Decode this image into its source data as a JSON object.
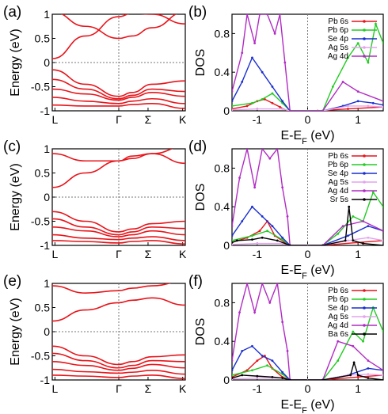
{
  "figure": {
    "band_axis_label": "Energy (eV)",
    "dos_axis_label": "DOS",
    "dos_xlabel_main": "E-E",
    "dos_xlabel_sub": "F",
    "dos_xlabel_unit": " (eV)"
  },
  "chart_data": [
    {
      "type": "line",
      "panel": "(a)",
      "ylabel": "Energy (eV)",
      "ylim": [
        -1,
        1
      ],
      "yticks": [
        "1",
        "0.5",
        "0",
        "-0.5",
        "-1"
      ],
      "xticks": [
        "L",
        "Γ",
        "Σ",
        "K"
      ],
      "x": [
        0,
        0.25,
        0.5,
        0.6,
        0.75,
        1.0
      ],
      "color": "#e8141a",
      "series": [
        {
          "values": [
            0.08,
            0.55,
            0.95,
            1.02,
            1.0,
            0.8
          ]
        },
        {
          "values": [
            1.05,
            0.75,
            0.5,
            0.55,
            0.72,
            1.05
          ]
        },
        {
          "values": [
            -0.15,
            -0.45,
            -0.7,
            -0.62,
            -0.45,
            -0.38
          ]
        },
        {
          "values": [
            -0.35,
            -0.55,
            -0.75,
            -0.68,
            -0.55,
            -0.6
          ]
        },
        {
          "values": [
            -0.55,
            -0.65,
            -0.78,
            -0.72,
            -0.62,
            -0.7
          ]
        },
        {
          "values": [
            -0.72,
            -0.8,
            -0.85,
            -0.8,
            -0.75,
            -0.85
          ]
        },
        {
          "values": [
            -0.88,
            -0.9,
            -0.9,
            -0.87,
            -0.85,
            -0.95
          ]
        }
      ]
    },
    {
      "type": "line",
      "panel": "(b)",
      "ylabel": "DOS",
      "xlim": [
        -1.5,
        1.5
      ],
      "ylim": [
        0,
        1
      ],
      "xticks": [
        "-1",
        "0",
        "1"
      ],
      "yticks": [
        "0",
        "0.4",
        "0.8"
      ],
      "legend": "top-right",
      "series": [
        {
          "name": "Pb 6s",
          "color": "#e8141a",
          "x": [
            -1.5,
            -1.2,
            -1.0,
            -0.85,
            -0.7,
            -0.55,
            -0.4,
            0.2,
            0.8,
            1.5
          ],
          "values": [
            0.02,
            0.05,
            0.1,
            0.12,
            0.08,
            0.04,
            0.0,
            0.0,
            0.02,
            0.04
          ]
        },
        {
          "name": "Pb 6p",
          "color": "#22cc22",
          "x": [
            -1.5,
            -1.1,
            -0.9,
            -0.7,
            -0.5,
            -0.35,
            0.3,
            0.5,
            0.8,
            1.0,
            1.2,
            1.35,
            1.5
          ],
          "values": [
            0.05,
            0.08,
            0.12,
            0.18,
            0.08,
            0.0,
            0.0,
            0.25,
            0.55,
            0.7,
            0.5,
            0.9,
            0.7
          ]
        },
        {
          "name": "Se 4p",
          "color": "#1a2fd0",
          "x": [
            -1.5,
            -1.3,
            -1.1,
            -0.9,
            -0.7,
            -0.5,
            -0.35,
            0.3,
            0.7,
            1.0,
            1.3,
            1.5
          ],
          "values": [
            0.1,
            0.3,
            0.55,
            0.4,
            0.25,
            0.1,
            0.0,
            0.0,
            0.05,
            0.1,
            0.08,
            0.06
          ]
        },
        {
          "name": "Ag 5s",
          "color": "#e4a3ee",
          "x": [
            -1.5,
            -1.0,
            -0.5,
            -0.35,
            0.3,
            0.8,
            1.2,
            1.5
          ],
          "values": [
            0.01,
            0.02,
            0.02,
            0.0,
            0.0,
            0.05,
            0.05,
            0.04
          ]
        },
        {
          "name": "Ag 4d",
          "color": "#b12bc4",
          "x": [
            -1.5,
            -1.3,
            -1.2,
            -1.05,
            -0.95,
            -0.8,
            -0.65,
            -0.55,
            -0.45,
            -0.35,
            0.3,
            0.7,
            1.0,
            1.5
          ],
          "values": [
            0.2,
            0.6,
            1.0,
            0.7,
            1.0,
            1.0,
            0.8,
            1.0,
            0.5,
            0.0,
            0.0,
            0.3,
            0.2,
            0.1
          ]
        },
        {
          "name": "Fermi",
          "color": "#000000",
          "x": [
            0,
            0
          ],
          "values": [
            0,
            1
          ],
          "dashed": true
        }
      ]
    },
    {
      "type": "line",
      "panel": "(c)",
      "ylabel": "Energy (eV)",
      "ylim": [
        -1,
        1
      ],
      "yticks": [
        "1",
        "0.5",
        "0",
        "-0.5",
        "-1"
      ],
      "xticks": [
        "L",
        "Γ",
        "Σ",
        "K"
      ],
      "x": [
        0,
        0.25,
        0.5,
        0.6,
        0.75,
        1.0
      ],
      "color": "#e8141a",
      "series": [
        {
          "values": [
            0.2,
            0.5,
            0.75,
            0.85,
            0.9,
            0.7
          ]
        },
        {
          "values": [
            0.9,
            0.75,
            0.75,
            0.8,
            0.9,
            1.05
          ]
        },
        {
          "values": [
            -0.3,
            -0.5,
            -0.72,
            -0.66,
            -0.55,
            -0.5
          ]
        },
        {
          "values": [
            -0.45,
            -0.62,
            -0.78,
            -0.72,
            -0.62,
            -0.65
          ]
        },
        {
          "values": [
            -0.62,
            -0.7,
            -0.82,
            -0.78,
            -0.7,
            -0.78
          ]
        },
        {
          "values": [
            -0.78,
            -0.85,
            -0.88,
            -0.85,
            -0.82,
            -0.9
          ]
        },
        {
          "values": [
            -0.9,
            -0.92,
            -0.95,
            -0.92,
            -0.9,
            -0.97
          ]
        }
      ]
    },
    {
      "type": "line",
      "panel": "(d)",
      "ylabel": "DOS",
      "xlim": [
        -1.5,
        1.5
      ],
      "ylim": [
        0,
        1
      ],
      "xticks": [
        "-1",
        "0",
        "1"
      ],
      "yticks": [
        "0",
        "0.4",
        "0.8"
      ],
      "legend": "top-right",
      "series": [
        {
          "name": "Pb 6s",
          "color": "#e8141a",
          "x": [
            -1.5,
            -1.2,
            -0.95,
            -0.8,
            -0.65,
            -0.45,
            -0.35,
            0.3,
            1.0,
            1.5
          ],
          "values": [
            0.03,
            0.08,
            0.15,
            0.25,
            0.1,
            0.03,
            0.0,
            0.0,
            0.03,
            0.05
          ]
        },
        {
          "name": "Pb 6p",
          "color": "#22cc22",
          "x": [
            -1.5,
            -1.1,
            -0.8,
            -0.5,
            -0.35,
            0.3,
            0.6,
            0.9,
            1.1,
            1.3,
            1.5
          ],
          "values": [
            0.05,
            0.1,
            0.15,
            0.06,
            0.0,
            0.0,
            0.12,
            0.3,
            0.25,
            0.55,
            0.4
          ]
        },
        {
          "name": "Se 4p",
          "color": "#1a2fd0",
          "x": [
            -1.5,
            -1.3,
            -1.1,
            -0.9,
            -0.7,
            -0.5,
            -0.35,
            0.3,
            0.8,
            1.2,
            1.5
          ],
          "values": [
            0.1,
            0.25,
            0.4,
            0.3,
            0.2,
            0.08,
            0.0,
            0.0,
            0.1,
            0.2,
            0.15
          ]
        },
        {
          "name": "Ag 5s",
          "color": "#e4a3ee",
          "x": [
            -1.5,
            -1.0,
            -0.5,
            -0.35,
            0.3,
            0.8,
            1.2,
            1.5
          ],
          "values": [
            0.01,
            0.02,
            0.02,
            0.0,
            0.0,
            0.05,
            0.08,
            0.05
          ]
        },
        {
          "name": "Ag 4d",
          "color": "#b12bc4",
          "x": [
            -1.5,
            -1.35,
            -1.2,
            -1.05,
            -0.9,
            -0.75,
            -0.6,
            -0.5,
            -0.4,
            -0.35,
            0.3,
            0.7,
            1.1,
            1.5
          ],
          "values": [
            0.2,
            0.7,
            1.0,
            0.6,
            1.0,
            0.9,
            1.0,
            0.6,
            0.3,
            0.0,
            0.0,
            0.2,
            0.25,
            0.15
          ]
        },
        {
          "name": "Sr 5s",
          "color": "#000000",
          "x": [
            -1.5,
            -1.4,
            -1.1,
            -0.9,
            -0.6,
            -0.35,
            0.3,
            0.75,
            0.82,
            0.9,
            1.1,
            1.5
          ],
          "values": [
            0.03,
            0.05,
            0.06,
            0.08,
            0.05,
            0.0,
            0.0,
            0.05,
            0.4,
            0.05,
            0.02,
            0.0
          ]
        },
        {
          "name": "Fermi",
          "color": "#000000",
          "x": [
            0,
            0
          ],
          "values": [
            0,
            1
          ],
          "dashed": true
        }
      ]
    },
    {
      "type": "line",
      "panel": "(e)",
      "ylabel": "Energy (eV)",
      "ylim": [
        -1,
        1
      ],
      "yticks": [
        "1",
        "0.5",
        "0",
        "-0.5",
        "-1"
      ],
      "xticks": [
        "L",
        "Γ",
        "Σ",
        "K"
      ],
      "x": [
        0,
        0.25,
        0.5,
        0.6,
        0.75,
        1.0
      ],
      "color": "#e8141a",
      "series": [
        {
          "values": [
            0.22,
            0.45,
            0.6,
            0.65,
            0.7,
            0.55
          ]
        },
        {
          "values": [
            0.95,
            0.8,
            0.85,
            0.9,
            0.95,
            1.05
          ]
        },
        {
          "values": [
            -0.3,
            -0.5,
            -0.68,
            -0.62,
            -0.52,
            -0.48
          ]
        },
        {
          "values": [
            -0.45,
            -0.6,
            -0.75,
            -0.7,
            -0.6,
            -0.62
          ]
        },
        {
          "values": [
            -0.62,
            -0.7,
            -0.8,
            -0.76,
            -0.68,
            -0.75
          ]
        },
        {
          "values": [
            -0.78,
            -0.83,
            -0.86,
            -0.84,
            -0.8,
            -0.88
          ]
        },
        {
          "values": [
            -0.9,
            -0.92,
            -0.95,
            -0.92,
            -0.9,
            -0.97
          ]
        }
      ]
    },
    {
      "type": "line",
      "panel": "(f)",
      "ylabel": "DOS",
      "xlim": [
        -1.5,
        1.5
      ],
      "ylim": [
        0,
        1
      ],
      "xticks": [
        "-1",
        "0",
        "1"
      ],
      "yticks": [
        "0",
        "0.4",
        "0.8"
      ],
      "legend": "top-right",
      "series": [
        {
          "name": "Pb 6s",
          "color": "#e8141a",
          "x": [
            -1.5,
            -1.2,
            -1.0,
            -0.85,
            -0.7,
            -0.5,
            -0.35,
            0.3,
            1.0,
            1.5
          ],
          "values": [
            0.03,
            0.1,
            0.2,
            0.25,
            0.12,
            0.03,
            0.0,
            0.0,
            0.03,
            0.05
          ]
        },
        {
          "name": "Pb 6p",
          "color": "#22cc22",
          "x": [
            -1.5,
            -1.1,
            -0.8,
            -0.5,
            -0.35,
            0.3,
            0.6,
            0.9,
            1.1,
            1.3,
            1.5
          ],
          "values": [
            0.05,
            0.1,
            0.15,
            0.06,
            0.0,
            0.0,
            0.2,
            0.5,
            0.4,
            0.75,
            0.5
          ]
        },
        {
          "name": "Se 4p",
          "color": "#1a2fd0",
          "x": [
            -1.5,
            -1.3,
            -1.1,
            -0.9,
            -0.7,
            -0.5,
            -0.35,
            0.3,
            0.8,
            1.2,
            1.5
          ],
          "values": [
            0.1,
            0.3,
            0.35,
            0.25,
            0.2,
            0.08,
            0.0,
            0.0,
            0.05,
            0.12,
            0.1
          ]
        },
        {
          "name": "Ag 5s",
          "color": "#e4a3ee",
          "x": [
            -1.5,
            -1.0,
            -0.5,
            -0.35,
            0.3,
            0.8,
            1.2,
            1.5
          ],
          "values": [
            0.01,
            0.02,
            0.02,
            0.0,
            0.0,
            0.05,
            0.06,
            0.05
          ]
        },
        {
          "name": "Ag 4d",
          "color": "#b12bc4",
          "x": [
            -1.5,
            -1.35,
            -1.2,
            -1.05,
            -0.9,
            -0.75,
            -0.6,
            -0.5,
            -0.4,
            -0.35,
            0.3,
            0.6,
            0.9,
            1.2,
            1.5
          ],
          "values": [
            0.2,
            0.7,
            1.0,
            0.7,
            1.0,
            0.8,
            1.0,
            0.6,
            0.3,
            0.0,
            0.0,
            0.4,
            0.35,
            0.2,
            0.1
          ]
        },
        {
          "name": "Ba 6s",
          "color": "#000000",
          "x": [
            -1.5,
            -1.3,
            -1.0,
            -0.7,
            -0.5,
            -0.35,
            0.3,
            0.85,
            0.92,
            1.0,
            1.2,
            1.5
          ],
          "values": [
            0.02,
            0.05,
            0.04,
            0.03,
            0.02,
            0.0,
            0.0,
            0.05,
            0.18,
            0.05,
            0.02,
            0.0
          ]
        },
        {
          "name": "Fermi",
          "color": "#000000",
          "x": [
            0,
            0
          ],
          "values": [
            0,
            1
          ],
          "dashed": true
        }
      ]
    }
  ]
}
